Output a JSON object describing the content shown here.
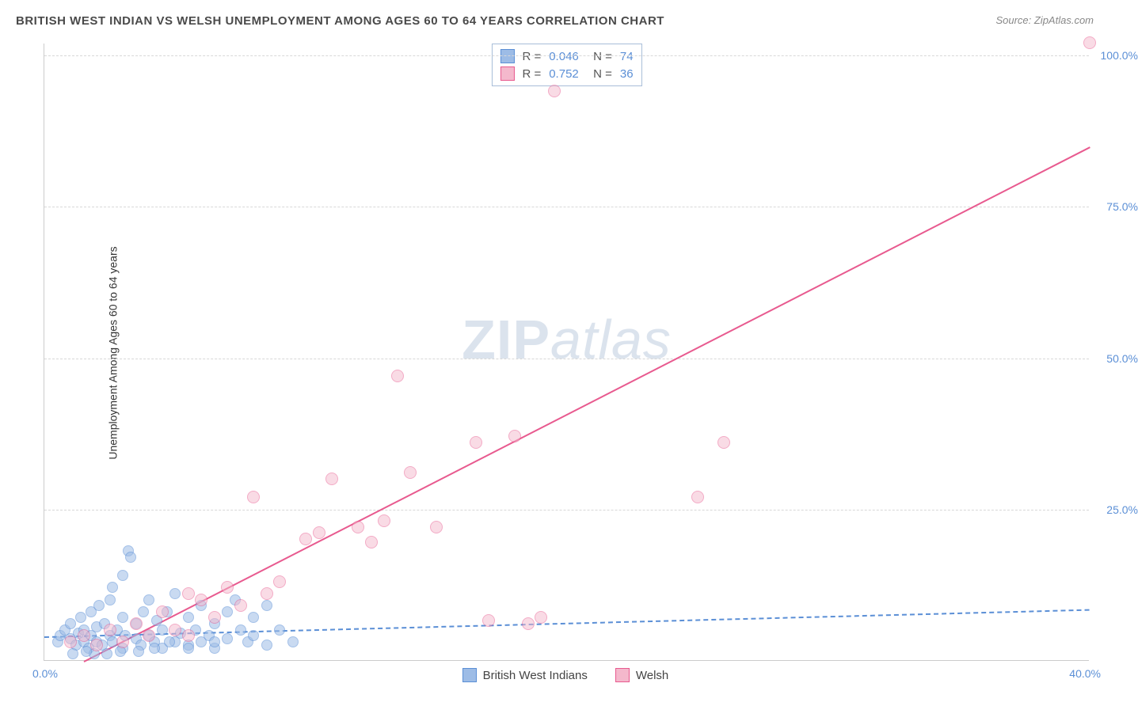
{
  "title": "BRITISH WEST INDIAN VS WELSH UNEMPLOYMENT AMONG AGES 60 TO 64 YEARS CORRELATION CHART",
  "source": "Source: ZipAtlas.com",
  "ylabel": "Unemployment Among Ages 60 to 64 years",
  "watermark_a": "ZIP",
  "watermark_b": "atlas",
  "chart": {
    "type": "scatter",
    "xlim": [
      0,
      40
    ],
    "ylim": [
      0,
      102
    ],
    "yticks": [
      25,
      50,
      75,
      100
    ],
    "ytick_labels": [
      "25.0%",
      "50.0%",
      "75.0%",
      "100.0%"
    ],
    "xtick_min": "0.0%",
    "xtick_max": "40.0%",
    "grid_color": "#d8d8d8",
    "axis_color": "#cccccc",
    "background_color": "#ffffff",
    "tick_text_color": "#5b8fd6",
    "series": [
      {
        "name": "British West Indians",
        "fill_color": "#9dbce6",
        "stroke_color": "#5b8fd6",
        "fill_opacity": 0.55,
        "marker_radius": 7,
        "trend": {
          "x1": 0,
          "y1": 4.0,
          "x2": 40,
          "y2": 8.5,
          "color": "#5b8fd6",
          "width": 2,
          "dash": true
        },
        "R": "0.046",
        "N": "74",
        "points": [
          [
            0.5,
            3
          ],
          [
            0.6,
            4
          ],
          [
            0.8,
            5
          ],
          [
            1.0,
            3.5
          ],
          [
            1.0,
            6
          ],
          [
            1.2,
            2.5
          ],
          [
            1.3,
            4.5
          ],
          [
            1.4,
            7
          ],
          [
            1.5,
            3
          ],
          [
            1.5,
            5
          ],
          [
            1.7,
            2
          ],
          [
            1.8,
            4
          ],
          [
            1.8,
            8
          ],
          [
            2.0,
            3
          ],
          [
            2.0,
            5.5
          ],
          [
            2.1,
            9
          ],
          [
            2.2,
            2.5
          ],
          [
            2.3,
            6
          ],
          [
            2.5,
            4
          ],
          [
            2.5,
            10
          ],
          [
            2.6,
            3
          ],
          [
            2.6,
            12
          ],
          [
            2.8,
            5
          ],
          [
            3.0,
            2
          ],
          [
            3.0,
            7
          ],
          [
            3.0,
            14
          ],
          [
            3.1,
            4
          ],
          [
            3.2,
            18
          ],
          [
            3.3,
            17
          ],
          [
            3.5,
            3.5
          ],
          [
            3.5,
            6
          ],
          [
            3.7,
            2.5
          ],
          [
            3.8,
            8
          ],
          [
            4.0,
            4
          ],
          [
            4.0,
            10
          ],
          [
            4.2,
            3
          ],
          [
            4.3,
            6.5
          ],
          [
            4.5,
            2
          ],
          [
            4.5,
            5
          ],
          [
            4.7,
            8
          ],
          [
            5.0,
            3
          ],
          [
            5.0,
            11
          ],
          [
            5.2,
            4.5
          ],
          [
            5.5,
            2.5
          ],
          [
            5.5,
            7
          ],
          [
            5.8,
            5
          ],
          [
            6.0,
            3
          ],
          [
            6.0,
            9
          ],
          [
            6.3,
            4
          ],
          [
            6.5,
            2
          ],
          [
            6.5,
            6
          ],
          [
            7.0,
            3.5
          ],
          [
            7.0,
            8
          ],
          [
            7.3,
            10
          ],
          [
            7.5,
            5
          ],
          [
            7.8,
            3
          ],
          [
            8.0,
            4
          ],
          [
            8.0,
            7
          ],
          [
            8.5,
            2.5
          ],
          [
            8.5,
            9
          ],
          [
            9.0,
            5
          ],
          [
            9.5,
            3
          ],
          [
            6.5,
            3
          ],
          [
            5.5,
            2
          ],
          [
            4.8,
            3
          ],
          [
            4.2,
            2
          ],
          [
            3.6,
            1.5
          ],
          [
            2.9,
            1.5
          ],
          [
            2.4,
            1
          ],
          [
            1.9,
            1
          ],
          [
            1.6,
            1.5
          ],
          [
            1.1,
            1
          ]
        ]
      },
      {
        "name": "Welsh",
        "fill_color": "#f4b8cc",
        "stroke_color": "#e85a8f",
        "fill_opacity": 0.5,
        "marker_radius": 8,
        "trend": {
          "x1": 1.5,
          "y1": 0,
          "x2": 40,
          "y2": 85,
          "color": "#e85a8f",
          "width": 2.5,
          "dash": false
        },
        "R": "0.752",
        "N": "36",
        "points": [
          [
            1,
            3
          ],
          [
            1.5,
            4
          ],
          [
            2,
            2.5
          ],
          [
            2.5,
            5
          ],
          [
            3,
            3
          ],
          [
            3.5,
            6
          ],
          [
            4,
            4
          ],
          [
            4.5,
            8
          ],
          [
            5,
            5
          ],
          [
            5.5,
            11
          ],
          [
            6,
            10
          ],
          [
            7,
            12
          ],
          [
            8,
            27
          ],
          [
            8.5,
            11
          ],
          [
            9,
            13
          ],
          [
            10,
            20
          ],
          [
            10.5,
            21
          ],
          [
            11,
            30
          ],
          [
            12,
            22
          ],
          [
            12.5,
            19.5
          ],
          [
            13,
            23
          ],
          [
            13.5,
            47
          ],
          [
            14,
            31
          ],
          [
            15,
            22
          ],
          [
            16.5,
            36
          ],
          [
            17,
            6.5
          ],
          [
            18,
            37
          ],
          [
            18.5,
            6
          ],
          [
            19,
            7
          ],
          [
            19.5,
            94
          ],
          [
            25,
            27
          ],
          [
            26,
            36
          ],
          [
            40,
            102
          ],
          [
            7.5,
            9
          ],
          [
            6.5,
            7
          ],
          [
            5.5,
            4
          ]
        ]
      }
    ]
  },
  "bottom_legend": [
    {
      "label": "British West Indians",
      "fill": "#9dbce6",
      "stroke": "#5b8fd6"
    },
    {
      "label": "Welsh",
      "fill": "#f4b8cc",
      "stroke": "#e85a8f"
    }
  ]
}
